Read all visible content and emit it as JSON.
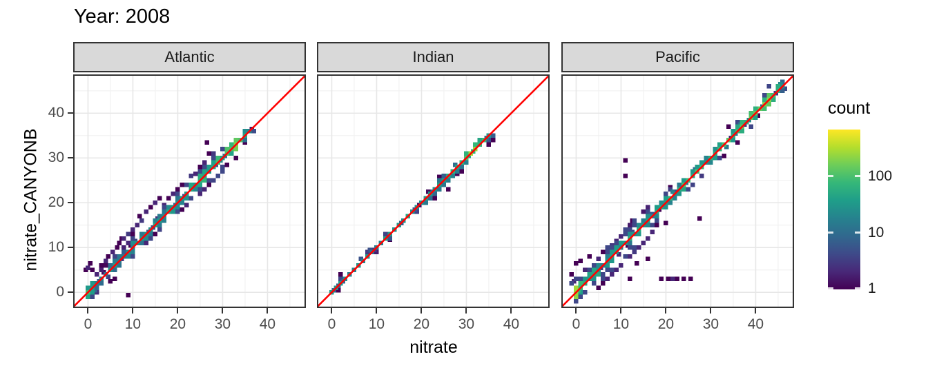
{
  "title": "Year: 2008",
  "axes": {
    "x_label": "nitrate",
    "y_label": "nitrate_CANYONB",
    "x_ticks": [
      "0",
      "10",
      "20",
      "30",
      "40"
    ],
    "y_ticks": [
      "0",
      "10",
      "20",
      "30",
      "40"
    ],
    "tick_values": [
      0,
      10,
      20,
      30,
      40
    ],
    "minor_values": [
      5,
      15,
      25,
      35,
      45
    ],
    "domain_x": [
      -3.3,
      48.5
    ],
    "domain_y": [
      -3.5,
      48.6
    ]
  },
  "legend": {
    "title": "count",
    "tick_labels": [
      "100",
      "10",
      "1"
    ],
    "tick_values": [
      100,
      10,
      1
    ],
    "scale": "log10",
    "max_count": 670,
    "min_count": 1
  },
  "colors": {
    "identity_line": "#ff0000",
    "strip_bg": "#d9d9d9",
    "panel_border": "#333333",
    "grid_major": "#e7e7e7",
    "grid_minor": "#f2f2f2",
    "tick_text": "#4d4d4d",
    "viridis": [
      "#440154",
      "#482878",
      "#3e4a89",
      "#31688e",
      "#26828e",
      "#1f9e89",
      "#35b779",
      "#6dcd59",
      "#b4de2c",
      "#fde725"
    ]
  },
  "chart_data": [
    {
      "facet": "Atlantic",
      "type": "heatmap",
      "description": "2D bin counts of nitrate_CANYONB vs nitrate, tight band along y=x from 0 to 36 with scatter above the line for x 0-16 and below for x 13-28; red y=x reference line",
      "seed": 101,
      "band": {
        "start": -0.6,
        "end": 36,
        "counts": [
          [
            -0.6,
            150
          ],
          [
            0,
            140
          ],
          [
            1,
            60
          ],
          [
            3,
            30
          ],
          [
            6,
            20
          ],
          [
            9,
            22
          ],
          [
            12,
            30
          ],
          [
            15,
            45
          ],
          [
            18,
            35
          ],
          [
            21,
            45
          ],
          [
            24,
            60
          ],
          [
            27,
            60
          ],
          [
            30,
            90
          ],
          [
            32,
            150
          ],
          [
            33,
            260
          ],
          [
            34,
            120
          ],
          [
            35,
            45
          ],
          [
            36,
            15
          ]
        ],
        "widths": [
          [
            -0.6,
            1.1
          ],
          [
            0,
            1.2
          ],
          [
            4,
            1.0
          ],
          [
            8,
            1.3
          ],
          [
            12,
            1.4
          ],
          [
            16,
            1.2
          ],
          [
            20,
            1.3
          ],
          [
            24,
            1.5
          ],
          [
            28,
            1.7
          ],
          [
            31,
            1.6
          ],
          [
            33,
            1.3
          ],
          [
            36,
            0.8
          ]
        ]
      },
      "outliers": [
        [
          9,
          -0.6,
          1
        ],
        [
          -0.5,
          5,
          1
        ],
        [
          0,
          5.5,
          2
        ],
        [
          0.5,
          6.5,
          1
        ],
        [
          1,
          5,
          1
        ],
        [
          2,
          4,
          2
        ],
        [
          3,
          6,
          1
        ],
        [
          4,
          7,
          2
        ],
        [
          4.5,
          8,
          1
        ],
        [
          5.5,
          9,
          2
        ],
        [
          6,
          8,
          3
        ],
        [
          6.5,
          10,
          1
        ],
        [
          7,
          11,
          1
        ],
        [
          7.5,
          12,
          1
        ],
        [
          8,
          12,
          2
        ],
        [
          9,
          13,
          3
        ],
        [
          9,
          11,
          2
        ],
        [
          10,
          14,
          2
        ],
        [
          10,
          12,
          1
        ],
        [
          11,
          15,
          2
        ],
        [
          11.5,
          17,
          1
        ],
        [
          12,
          16,
          3
        ],
        [
          13,
          18,
          2
        ],
        [
          14,
          19,
          1
        ],
        [
          15,
          20,
          2
        ],
        [
          16,
          21,
          1
        ],
        [
          5,
          2.5,
          1
        ],
        [
          6,
          3,
          1
        ],
        [
          13,
          11,
          2
        ],
        [
          14,
          12,
          2
        ],
        [
          15,
          13,
          1
        ],
        [
          17,
          19.5,
          2
        ],
        [
          18,
          21,
          1
        ],
        [
          19,
          22,
          2
        ],
        [
          20,
          23,
          1
        ],
        [
          21,
          18.5,
          1
        ],
        [
          22,
          19.5,
          2
        ],
        [
          25,
          22,
          2
        ],
        [
          26,
          23,
          2
        ],
        [
          27,
          24,
          1
        ],
        [
          24,
          26.5,
          2
        ],
        [
          25,
          28,
          1
        ],
        [
          26,
          29,
          2
        ],
        [
          26.5,
          33.5,
          1
        ],
        [
          27,
          31,
          1
        ],
        [
          31,
          28.5,
          1
        ],
        [
          33,
          30,
          1
        ],
        [
          35,
          33.5,
          1
        ]
      ]
    },
    {
      "facet": "Indian",
      "type": "heatmap",
      "description": "2D bin counts, very tight band along y=x from 0 to 35, brightest (highest counts) near 30-33",
      "seed": 202,
      "band": {
        "start": -0.3,
        "end": 35,
        "counts": [
          [
            -0.3,
            70
          ],
          [
            0,
            70
          ],
          [
            2,
            30
          ],
          [
            5,
            22
          ],
          [
            8,
            26
          ],
          [
            11,
            28
          ],
          [
            14,
            32
          ],
          [
            17,
            36
          ],
          [
            20,
            45
          ],
          [
            23,
            40
          ],
          [
            26,
            48
          ],
          [
            28,
            60
          ],
          [
            30,
            140
          ],
          [
            31,
            260
          ],
          [
            32,
            300
          ],
          [
            33,
            150
          ],
          [
            34,
            60
          ],
          [
            35,
            25
          ]
        ],
        "widths": [
          [
            -0.3,
            0.6
          ],
          [
            10,
            0.55
          ],
          [
            20,
            0.7
          ],
          [
            24,
            0.85
          ],
          [
            28,
            0.8
          ],
          [
            31,
            0.95
          ],
          [
            35,
            0.7
          ]
        ]
      },
      "outliers": [
        [
          2,
          4,
          1
        ],
        [
          1.5,
          0.5,
          1
        ],
        [
          26,
          23,
          1
        ],
        [
          24,
          25.8,
          1
        ],
        [
          28,
          26.5,
          1
        ],
        [
          13,
          11.8,
          1
        ],
        [
          23,
          21,
          1
        ],
        [
          29,
          27,
          1
        ]
      ]
    },
    {
      "facet": "Pacific",
      "type": "heatmap",
      "description": "2D bin counts, band along y=x from 0 to 46, broad scatter below x=16, isolated low-count bins near (11,30),(11,26),(34,37) and a horizontal run near y=3 for x 19-26",
      "seed": 303,
      "band": {
        "start": -0.6,
        "end": 46,
        "counts": [
          [
            -0.6,
            320
          ],
          [
            0,
            300
          ],
          [
            1,
            90
          ],
          [
            3,
            45
          ],
          [
            6,
            32
          ],
          [
            9,
            34
          ],
          [
            12,
            38
          ],
          [
            15,
            42
          ],
          [
            18,
            50
          ],
          [
            21,
            55
          ],
          [
            24,
            60
          ],
          [
            27,
            65
          ],
          [
            30,
            70
          ],
          [
            33,
            78
          ],
          [
            36,
            90
          ],
          [
            39,
            110
          ],
          [
            42,
            140
          ],
          [
            44,
            170
          ],
          [
            45,
            90
          ],
          [
            46,
            25
          ]
        ],
        "widths": [
          [
            -0.6,
            1.5
          ],
          [
            0,
            1.7
          ],
          [
            4,
            2.1
          ],
          [
            8,
            2.3
          ],
          [
            12,
            2.1
          ],
          [
            15,
            1.6
          ],
          [
            18,
            1.2
          ],
          [
            22,
            1.0
          ],
          [
            28,
            1.0
          ],
          [
            34,
            1.05
          ],
          [
            40,
            1.2
          ],
          [
            44,
            1.3
          ],
          [
            46,
            0.8
          ]
        ]
      },
      "outliers": [
        [
          11,
          29.5,
          1
        ],
        [
          11,
          26,
          1
        ],
        [
          34,
          37,
          1
        ],
        [
          27.5,
          16.5,
          1
        ],
        [
          19,
          3,
          1
        ],
        [
          20.5,
          3,
          1
        ],
        [
          21.5,
          3,
          2
        ],
        [
          22.5,
          3,
          1
        ],
        [
          24,
          3,
          1
        ],
        [
          25.5,
          3,
          1
        ],
        [
          16,
          7.5,
          1
        ],
        [
          13.5,
          6.5,
          1
        ],
        [
          12,
          3,
          1
        ],
        [
          0,
          6.5,
          1
        ],
        [
          1,
          7,
          1
        ],
        [
          -1,
          4,
          1
        ],
        [
          2,
          5,
          2
        ],
        [
          3,
          5,
          1
        ],
        [
          4,
          6,
          2
        ],
        [
          -0.5,
          2.5,
          2
        ],
        [
          5,
          7.5,
          2
        ],
        [
          6,
          9,
          1
        ],
        [
          7,
          10,
          2
        ],
        [
          3,
          8,
          1
        ],
        [
          5,
          1,
          1
        ],
        [
          6,
          2,
          1
        ],
        [
          7,
          3,
          2
        ],
        [
          8,
          4,
          2
        ],
        [
          9,
          5,
          2
        ],
        [
          10,
          6,
          2
        ],
        [
          12,
          8,
          2
        ],
        [
          13,
          9,
          3
        ],
        [
          14,
          10,
          2
        ],
        [
          9,
          11.5,
          2
        ],
        [
          10,
          12.5,
          2
        ],
        [
          12,
          14,
          1
        ],
        [
          8,
          10.5,
          3
        ],
        [
          15,
          11,
          2
        ],
        [
          16,
          12,
          2
        ],
        [
          17,
          13.5,
          2
        ],
        [
          20,
          15.5,
          1
        ],
        [
          21,
          23.5,
          1
        ],
        [
          12.5,
          16,
          1
        ],
        [
          33,
          30.5,
          1
        ],
        [
          36,
          33.5,
          1
        ]
      ]
    }
  ]
}
